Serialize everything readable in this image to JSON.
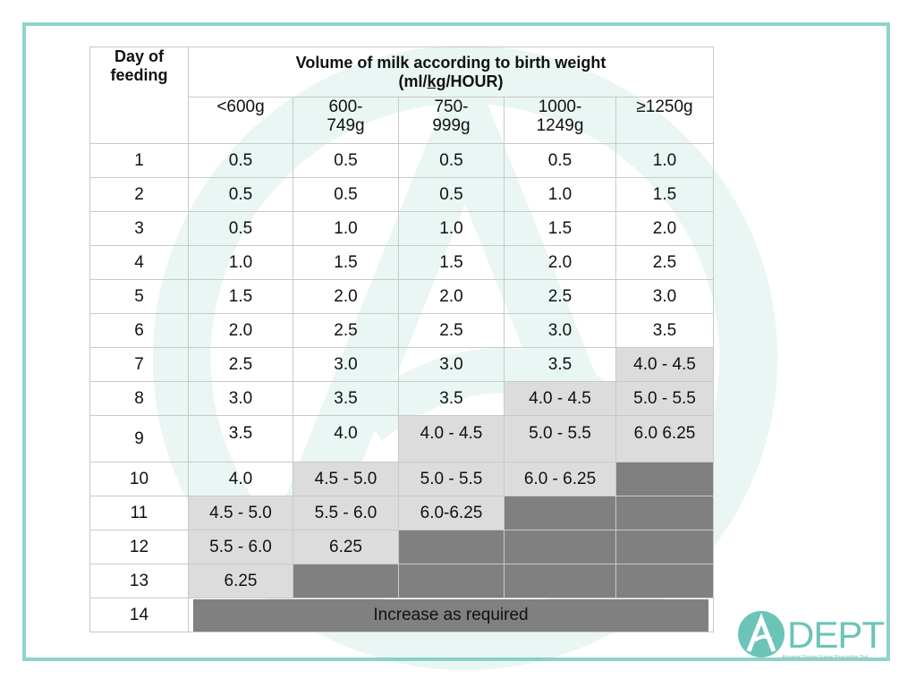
{
  "table": {
    "day_header_line1": "Day of",
    "day_header_line2": "feeding",
    "main_header_line1": "Volume of milk according to birth weight",
    "main_header_pre": "(ml/",
    "main_header_kg": "kg",
    "main_header_post": "/HOUR)",
    "weight_classes": [
      {
        "line1": "<600g",
        "line2": ""
      },
      {
        "line1": "600-",
        "line2": "749g"
      },
      {
        "line1": "750-",
        "line2": "999g"
      },
      {
        "line1": "1000-",
        "line2": "1249g"
      },
      {
        "line1": "≥1250g",
        "line2": ""
      }
    ],
    "rows": [
      {
        "day": "1",
        "cells": [
          "0.5",
          "0.5",
          "0.5",
          "0.5",
          "1.0"
        ]
      },
      {
        "day": "2",
        "cells": [
          "0.5",
          "0.5",
          "0.5",
          "1.0",
          "1.5"
        ]
      },
      {
        "day": "3",
        "cells": [
          "0.5",
          "1.0",
          "1.0",
          "1.5",
          "2.0"
        ]
      },
      {
        "day": "4",
        "cells": [
          "1.0",
          "1.5",
          "1.5",
          "2.0",
          "2.5"
        ]
      },
      {
        "day": "5",
        "cells": [
          "1.5",
          "2.0",
          "2.0",
          "2.5",
          "3.0"
        ]
      },
      {
        "day": "6",
        "cells": [
          "2.0",
          "2.5",
          "2.5",
          "3.0",
          "3.5"
        ]
      },
      {
        "day": "7",
        "cells": [
          "2.5",
          "3.0",
          "3.0",
          "3.5",
          "4.0 - 4.5"
        ]
      },
      {
        "day": "8",
        "cells": [
          "3.0",
          "3.5",
          "3.5",
          "4.0 - 4.5",
          "5.0 - 5.5"
        ]
      },
      {
        "day": "9",
        "cells": [
          "3.5",
          "4.0",
          "4.0 - 4.5",
          "5.0 - 5.5",
          "6.0 6.25"
        ]
      },
      {
        "day": "10",
        "cells": [
          "4.0",
          "4.5 - 5.0",
          "5.0 - 5.5",
          "6.0 - 6.25",
          ""
        ]
      },
      {
        "day": "11",
        "cells": [
          "4.5 - 5.0",
          "5.5 - 6.0",
          "6.0-6.25",
          "",
          ""
        ]
      },
      {
        "day": "12",
        "cells": [
          "5.5 - 6.0",
          "6.25",
          "",
          "",
          ""
        ]
      },
      {
        "day": "13",
        "cells": [
          "6.25",
          "",
          "",
          "",
          ""
        ]
      },
      {
        "day": "14",
        "increase": "Increase as required"
      }
    ],
    "colors": {
      "light_shade": "#dcdcdc",
      "dark_shade": "#808080",
      "frame": "#8fd3c9"
    }
  },
  "logo": {
    "text": "DEPT",
    "tagline": "Abnormal Doppler Enteral Prescription Trial",
    "color": "#6cc4b8"
  }
}
